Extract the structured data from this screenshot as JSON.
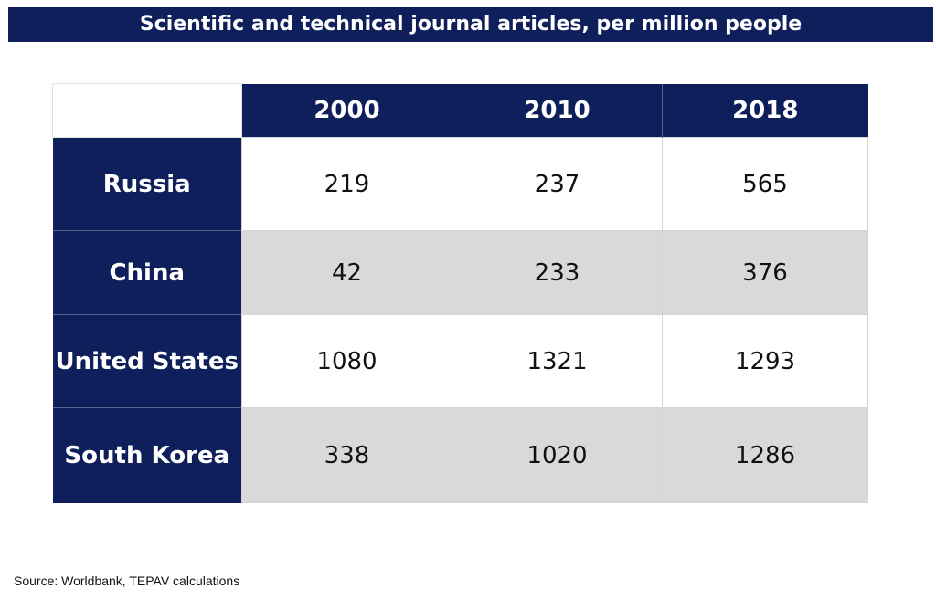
{
  "chart_data": {
    "type": "table",
    "title": "Scientific and technical journal articles, per million people",
    "columns": [
      "2000",
      "2010",
      "2018"
    ],
    "rows": [
      {
        "label": "Russia",
        "values": [
          "219",
          "237",
          "565"
        ]
      },
      {
        "label": "China",
        "values": [
          "42",
          "233",
          "376"
        ]
      },
      {
        "label": "United States",
        "values": [
          "1080",
          "1321",
          "1293"
        ]
      },
      {
        "label": "South Korea",
        "values": [
          "338",
          "1020",
          "1286"
        ]
      }
    ],
    "source": "Source:  Worldbank, TEPAV calculations"
  },
  "colors": {
    "header_background": "#0f1f5c",
    "header_text": "#ffffff",
    "row_band_light": "#ffffff",
    "row_band_dark": "#d9d9d9"
  }
}
